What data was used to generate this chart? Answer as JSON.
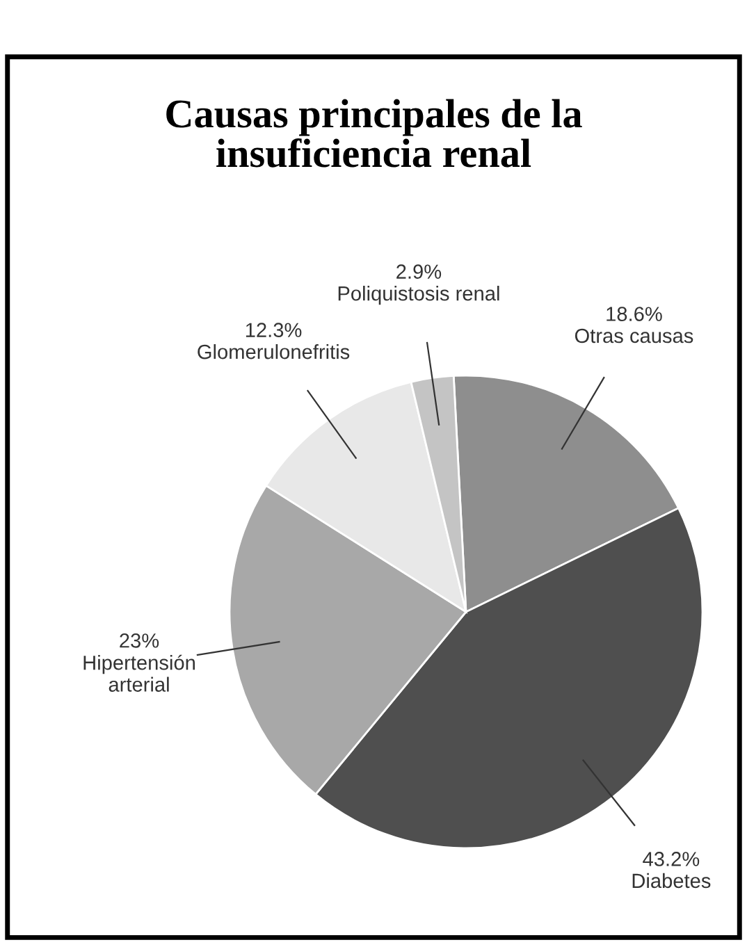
{
  "chart_data": {
    "type": "pie",
    "title": "Causas principales de la\ninsuficiencia renal",
    "categories": [
      "Otras causas",
      "Diabetes",
      "Hipertensión\narterial",
      "Glomerulonefritis",
      "Poliquistosis renal"
    ],
    "values": [
      18.6,
      43.2,
      23,
      12.3,
      2.9
    ],
    "value_labels": [
      "18.6%",
      "43.2%",
      "23%",
      "12.3%",
      "2.9%"
    ],
    "colors": [
      "#8e8e8e",
      "#4f4f4f",
      "#a8a8a8",
      "#e8e8e8",
      "#c4c4c4"
    ]
  }
}
